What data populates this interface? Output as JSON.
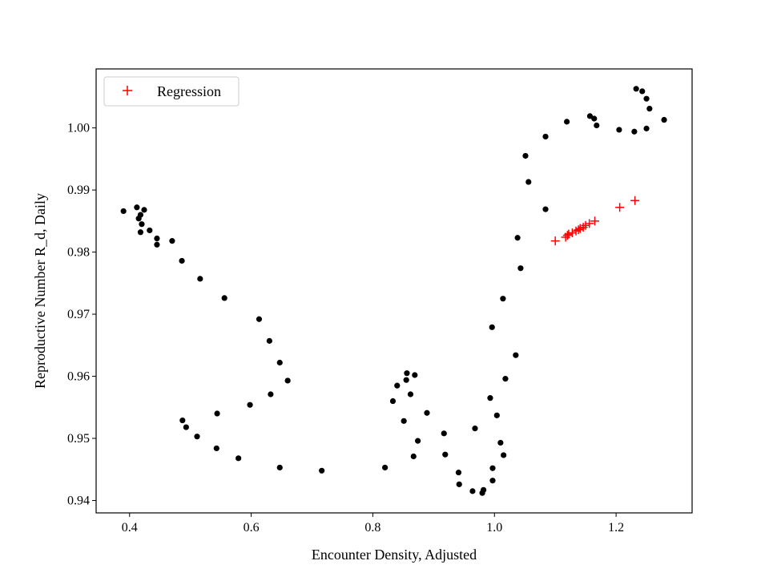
{
  "chart_data": {
    "type": "scatter",
    "title": "",
    "xlabel": "Encounter Density, Adjusted",
    "ylabel": "Reproductive Number R_d, Daily",
    "xlim": [
      0.345,
      1.325
    ],
    "ylim": [
      0.938,
      1.0095
    ],
    "x_ticks": [
      0.4,
      0.6,
      0.8,
      1.0,
      1.2
    ],
    "x_tick_labels": [
      "0.4",
      "0.6",
      "0.8",
      "1.0",
      "1.2"
    ],
    "y_ticks": [
      0.94,
      0.95,
      0.96,
      0.97,
      0.98,
      0.99,
      1.0
    ],
    "y_tick_labels": [
      "0.94",
      "0.95",
      "0.96",
      "0.97",
      "0.98",
      "0.99",
      "1.00"
    ],
    "grid": false,
    "legend_position": "upper-left",
    "series": [
      {
        "name": "",
        "marker": "dot",
        "color": "#000000",
        "points": [
          [
            0.39,
            0.9866
          ],
          [
            0.412,
            0.9872
          ],
          [
            0.415,
            0.9854
          ],
          [
            0.418,
            0.986
          ],
          [
            0.42,
            0.9845
          ],
          [
            0.418,
            0.9832
          ],
          [
            0.424,
            0.9868
          ],
          [
            0.433,
            0.9835
          ],
          [
            0.445,
            0.9822
          ],
          [
            0.445,
            0.9812
          ],
          [
            0.47,
            0.9818
          ],
          [
            0.486,
            0.9786
          ],
          [
            0.516,
            0.9757
          ],
          [
            0.556,
            0.9726
          ],
          [
            0.613,
            0.9692
          ],
          [
            0.63,
            0.9657
          ],
          [
            0.647,
            0.9622
          ],
          [
            0.66,
            0.9593
          ],
          [
            0.632,
            0.9571
          ],
          [
            0.598,
            0.9554
          ],
          [
            0.544,
            0.954
          ],
          [
            0.487,
            0.9529
          ],
          [
            0.493,
            0.9518
          ],
          [
            0.511,
            0.9503
          ],
          [
            0.543,
            0.9484
          ],
          [
            0.579,
            0.9468
          ],
          [
            0.647,
            0.9453
          ],
          [
            0.716,
            0.9448
          ],
          [
            0.82,
            0.9453
          ],
          [
            0.867,
            0.9471
          ],
          [
            0.874,
            0.9496
          ],
          [
            0.851,
            0.9528
          ],
          [
            0.833,
            0.956
          ],
          [
            0.84,
            0.9585
          ],
          [
            0.855,
            0.9594
          ],
          [
            0.856,
            0.9605
          ],
          [
            0.869,
            0.9602
          ],
          [
            0.862,
            0.9571
          ],
          [
            0.889,
            0.9541
          ],
          [
            0.917,
            0.9508
          ],
          [
            0.919,
            0.9474
          ],
          [
            0.941,
            0.9445
          ],
          [
            0.942,
            0.9426
          ],
          [
            0.964,
            0.9415
          ],
          [
            0.98,
            0.9412
          ],
          [
            0.982,
            0.9417
          ],
          [
            0.997,
            0.9432
          ],
          [
            0.997,
            0.9452
          ],
          [
            1.015,
            0.9473
          ],
          [
            1.01,
            0.9493
          ],
          [
            1.004,
            0.9537
          ],
          [
            0.968,
            0.9516
          ],
          [
            0.993,
            0.9565
          ],
          [
            1.018,
            0.9596
          ],
          [
            1.035,
            0.9634
          ],
          [
            0.996,
            0.9679
          ],
          [
            1.014,
            0.9725
          ],
          [
            1.043,
            0.9774
          ],
          [
            1.038,
            0.9823
          ],
          [
            1.084,
            0.9869
          ],
          [
            1.056,
            0.9913
          ],
          [
            1.051,
            0.9955
          ],
          [
            1.084,
            0.9986
          ],
          [
            1.119,
            1.001
          ],
          [
            1.157,
            1.0019
          ],
          [
            1.164,
            1.0015
          ],
          [
            1.168,
            1.0004
          ],
          [
            1.205,
            0.9997
          ],
          [
            1.23,
            0.9994
          ],
          [
            1.25,
            0.9999
          ],
          [
            1.279,
            1.0013
          ],
          [
            1.255,
            1.0031
          ],
          [
            1.25,
            1.0047
          ],
          [
            1.243,
            1.0059
          ],
          [
            1.233,
            1.0063
          ]
        ]
      },
      {
        "name": "Regression",
        "marker": "plus",
        "color": "#ff0000",
        "points": [
          [
            1.1,
            0.9818
          ],
          [
            1.117,
            0.9824
          ],
          [
            1.12,
            0.9827
          ],
          [
            1.122,
            0.9829
          ],
          [
            1.128,
            0.9831
          ],
          [
            1.134,
            0.9834
          ],
          [
            1.138,
            0.9836
          ],
          [
            1.141,
            0.9838
          ],
          [
            1.146,
            0.984
          ],
          [
            1.15,
            0.9843
          ],
          [
            1.156,
            0.9846
          ],
          [
            1.165,
            0.985
          ],
          [
            1.206,
            0.9872
          ],
          [
            1.231,
            0.9883
          ]
        ]
      }
    ]
  }
}
